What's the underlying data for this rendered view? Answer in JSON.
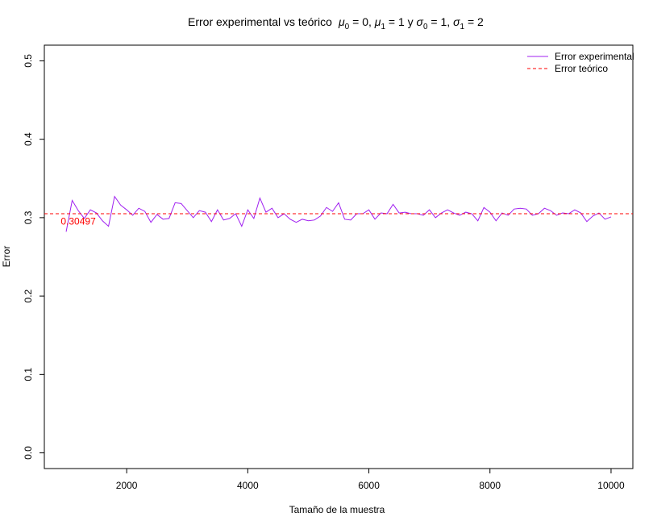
{
  "chart_data": {
    "type": "line",
    "title": {
      "main": "Error experimental vs teórico",
      "math_parts": [
        {
          "var": "μ",
          "sub": "0",
          "rest": " = 0, "
        },
        {
          "var": "μ",
          "sub": "1",
          "rest": " = 1 y "
        },
        {
          "var": "σ",
          "sub": "0",
          "rest": " = 1, "
        },
        {
          "var": "σ",
          "sub": "1",
          "rest": " = 2"
        }
      ]
    },
    "xlabel": "Tamaño de la muestra",
    "ylabel": "Error",
    "xlim": [
      640,
      10360
    ],
    "ylim": [
      -0.02,
      0.52
    ],
    "xticks": [
      2000,
      4000,
      6000,
      8000,
      10000
    ],
    "xtick_labels": [
      "2000",
      "4000",
      "6000",
      "8000",
      "10000"
    ],
    "yticks": [
      0.0,
      0.1,
      0.2,
      0.3,
      0.4,
      0.5
    ],
    "ytick_labels": [
      "0.0",
      "0.1",
      "0.2",
      "0.3",
      "0.4",
      "0.5"
    ],
    "grid": false,
    "legend_position": "top-right",
    "series": [
      {
        "name": "Error experimental",
        "style": "solid",
        "color": "#a020f0",
        "x": [
          1000,
          1100,
          1200,
          1300,
          1400,
          1500,
          1600,
          1700,
          1800,
          1900,
          2000,
          2100,
          2200,
          2300,
          2400,
          2500,
          2600,
          2700,
          2800,
          2900,
          3000,
          3100,
          3200,
          3300,
          3400,
          3500,
          3600,
          3700,
          3800,
          3900,
          4000,
          4100,
          4200,
          4300,
          4400,
          4500,
          4600,
          4700,
          4800,
          4900,
          5000,
          5100,
          5200,
          5300,
          5400,
          5500,
          5600,
          5700,
          5800,
          5900,
          6000,
          6100,
          6200,
          6300,
          6400,
          6500,
          6600,
          6700,
          6800,
          6900,
          7000,
          7100,
          7200,
          7300,
          7400,
          7500,
          7600,
          7700,
          7800,
          7900,
          8000,
          8100,
          8200,
          8300,
          8400,
          8500,
          8600,
          8700,
          8800,
          8900,
          9000,
          9100,
          9200,
          9300,
          9400,
          9500,
          9600,
          9700,
          9800,
          9900,
          10000
        ],
        "values": [
          0.282,
          0.322,
          0.309,
          0.299,
          0.31,
          0.306,
          0.296,
          0.289,
          0.327,
          0.316,
          0.31,
          0.303,
          0.312,
          0.308,
          0.294,
          0.304,
          0.298,
          0.299,
          0.319,
          0.318,
          0.309,
          0.3,
          0.309,
          0.307,
          0.295,
          0.31,
          0.297,
          0.299,
          0.305,
          0.289,
          0.31,
          0.299,
          0.325,
          0.307,
          0.312,
          0.3,
          0.305,
          0.298,
          0.294,
          0.298,
          0.296,
          0.297,
          0.302,
          0.313,
          0.308,
          0.319,
          0.298,
          0.297,
          0.305,
          0.305,
          0.31,
          0.298,
          0.306,
          0.305,
          0.317,
          0.306,
          0.307,
          0.305,
          0.305,
          0.303,
          0.31,
          0.3,
          0.306,
          0.31,
          0.306,
          0.303,
          0.307,
          0.305,
          0.296,
          0.313,
          0.307,
          0.296,
          0.306,
          0.303,
          0.311,
          0.312,
          0.311,
          0.303,
          0.305,
          0.312,
          0.309,
          0.303,
          0.306,
          0.305,
          0.31,
          0.306,
          0.295,
          0.302,
          0.306,
          0.298,
          0.301
        ]
      },
      {
        "name": "Error teórico",
        "style": "dashed",
        "color": "#ff0000",
        "type": "hline",
        "value": 0.30497
      }
    ],
    "annotations": [
      {
        "text": "0.30497",
        "x": 1200,
        "y": 0.291,
        "color": "#ff0000"
      }
    ]
  }
}
